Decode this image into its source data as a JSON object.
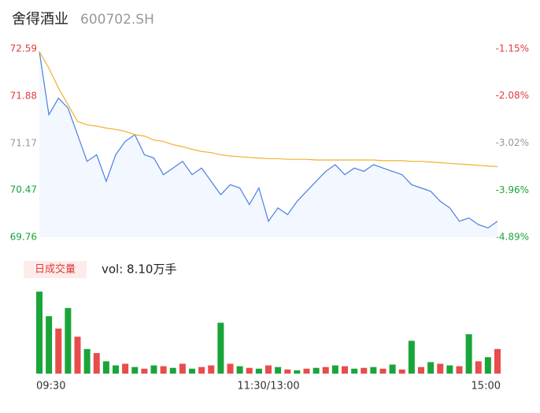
{
  "chart_data": [
    {
      "type": "line",
      "title": "舍得酒业",
      "subtitle": "600702.SH",
      "x": [
        0,
        5,
        10,
        15,
        20,
        25,
        30,
        35,
        40,
        45,
        50,
        55,
        60,
        65,
        70,
        75,
        80,
        85,
        90,
        95,
        100,
        105,
        110,
        115,
        120,
        125,
        130,
        135,
        140,
        145,
        150,
        155,
        160,
        165,
        170,
        175,
        180,
        185,
        190,
        195,
        200,
        205,
        210,
        215,
        220,
        225,
        230,
        235,
        240
      ],
      "xlim": [
        0,
        240
      ],
      "series": [
        {
          "name": "price",
          "color": "#4a7fe0",
          "values": [
            72.55,
            71.6,
            71.85,
            71.7,
            71.3,
            70.9,
            71.0,
            70.6,
            71.0,
            71.2,
            71.3,
            71.0,
            70.95,
            70.7,
            70.8,
            70.9,
            70.7,
            70.8,
            70.6,
            70.4,
            70.55,
            70.5,
            70.25,
            70.5,
            70.0,
            70.2,
            70.1,
            70.3,
            70.45,
            70.6,
            70.75,
            70.85,
            70.7,
            70.8,
            70.75,
            70.85,
            70.8,
            70.75,
            70.7,
            70.55,
            70.5,
            70.45,
            70.3,
            70.2,
            70.0,
            70.05,
            69.95,
            69.9,
            70.0
          ]
        },
        {
          "name": "avg",
          "color": "#f0b12c",
          "values": [
            72.55,
            72.3,
            72.0,
            71.75,
            71.5,
            71.45,
            71.43,
            71.4,
            71.38,
            71.35,
            71.3,
            71.28,
            71.22,
            71.2,
            71.15,
            71.12,
            71.08,
            71.05,
            71.03,
            71.0,
            70.98,
            70.97,
            70.96,
            70.95,
            70.94,
            70.94,
            70.93,
            70.93,
            70.93,
            70.92,
            70.92,
            70.92,
            70.92,
            70.92,
            70.92,
            70.92,
            70.91,
            70.91,
            70.91,
            70.9,
            70.9,
            70.89,
            70.88,
            70.87,
            70.86,
            70.85,
            70.84,
            70.83,
            70.82
          ]
        }
      ],
      "ylim": [
        69.76,
        72.59
      ],
      "yticks": [
        72.59,
        71.88,
        71.17,
        70.47,
        69.76
      ],
      "y2lim": [
        -4.89,
        -1.15
      ],
      "y2ticks": [
        {
          "value": -1.15,
          "label": "-1.15%"
        },
        {
          "value": -2.08,
          "label": "-2.08%"
        },
        {
          "value": -3.02,
          "label": "-3.02%"
        },
        {
          "value": -3.96,
          "label": "-3.96%"
        },
        {
          "value": -4.89,
          "label": "-4.89%"
        }
      ]
    },
    {
      "type": "bar",
      "title": "日成交量",
      "subtitle": "vol: 8.10万手",
      "x": [
        0,
        5,
        10,
        15,
        20,
        25,
        30,
        35,
        40,
        45,
        50,
        55,
        60,
        65,
        70,
        75,
        80,
        85,
        90,
        95,
        100,
        105,
        110,
        115,
        120,
        125,
        130,
        135,
        140,
        145,
        150,
        155,
        160,
        165,
        170,
        175,
        180,
        185,
        190,
        195,
        200,
        205,
        210,
        215,
        220,
        225,
        230,
        235,
        240
      ],
      "xlim": [
        0,
        240
      ],
      "ylim": [
        0,
        100
      ],
      "xticks": [
        {
          "value": 0,
          "label": "09:30"
        },
        {
          "value": 120,
          "label": "11:30/13:00"
        },
        {
          "value": 240,
          "label": "15:00"
        }
      ],
      "series": [
        {
          "name": "up",
          "color": "#e84c4c",
          "values": [
            null,
            null,
            55,
            null,
            45,
            null,
            25,
            null,
            null,
            12,
            null,
            6,
            null,
            9,
            null,
            12,
            null,
            8,
            10,
            null,
            12,
            null,
            7,
            null,
            10,
            null,
            5,
            null,
            6,
            null,
            8,
            null,
            9,
            null,
            7,
            null,
            6,
            null,
            5,
            null,
            8,
            null,
            12,
            null,
            9,
            null,
            15,
            null,
            30
          ]
        },
        {
          "name": "down",
          "color": "#1aa53a",
          "values": [
            100,
            70,
            null,
            80,
            null,
            30,
            null,
            15,
            10,
            null,
            8,
            null,
            10,
            null,
            7,
            null,
            6,
            null,
            null,
            62,
            null,
            9,
            null,
            6,
            null,
            8,
            null,
            4,
            null,
            7,
            null,
            10,
            null,
            6,
            null,
            8,
            null,
            11,
            null,
            40,
            null,
            14,
            null,
            10,
            null,
            48,
            null,
            20,
            null
          ]
        }
      ]
    }
  ]
}
